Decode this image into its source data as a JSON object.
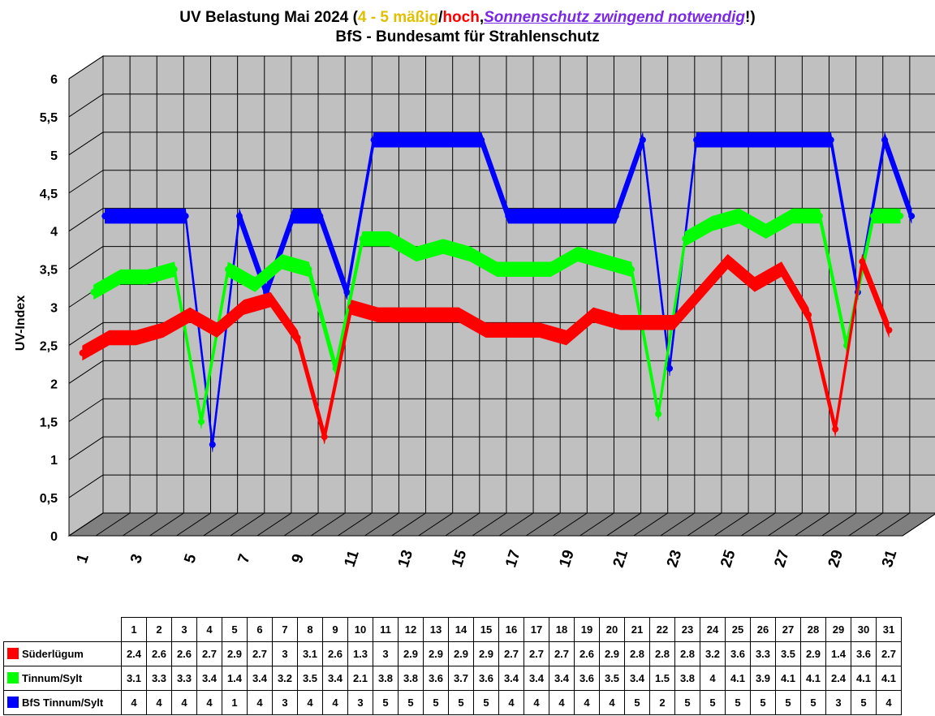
{
  "title": {
    "line1_a": "UV Belastung Mai 2024 (",
    "line1_b": "4 - 5 mäßig",
    "line1_c": "/",
    "line1_d": "hoch",
    "line1_e": ",",
    "line1_f": "Sonnenschutz zwingend notwendig",
    "line1_g": "!)",
    "line2": "BfS - Bundesamt für Strahlenschutz"
  },
  "colors": {
    "title_yellow": "#e0c000",
    "title_red": "#ff0000",
    "title_purple": "#7a28e6",
    "series1": "#ff0000",
    "series2": "#00ff00",
    "series3": "#0000ff",
    "wall": "#c0c0c0",
    "floor": "#808080"
  },
  "chart_data": {
    "type": "line",
    "ylabel": "UV-Index",
    "ylim": [
      0,
      6
    ],
    "yticks": [
      "0",
      "0,5",
      "1",
      "1,5",
      "2",
      "2,5",
      "3",
      "3,5",
      "4",
      "4,5",
      "5",
      "5,5",
      "6"
    ],
    "xtick_labels": [
      "1",
      "3",
      "5",
      "7",
      "9",
      "11",
      "13",
      "15",
      "17",
      "19",
      "21",
      "23",
      "25",
      "27",
      "29",
      "31"
    ],
    "categories": [
      "1",
      "2",
      "3",
      "4",
      "5",
      "6",
      "7",
      "8",
      "9",
      "10",
      "11",
      "12",
      "13",
      "14",
      "15",
      "16",
      "17",
      "18",
      "19",
      "20",
      "21",
      "22",
      "23",
      "24",
      "25",
      "26",
      "27",
      "28",
      "29",
      "30",
      "31"
    ],
    "grid": true,
    "legend": "table-below",
    "series": [
      {
        "name": "Süderlügum",
        "values": [
          "2.4",
          "2.6",
          "2.6",
          "2.7",
          "2.9",
          "2.7",
          "3",
          "3.1",
          "2.6",
          "1.3",
          "3",
          "2.9",
          "2.9",
          "2.9",
          "2.9",
          "2.7",
          "2.7",
          "2.7",
          "2.6",
          "2.9",
          "2.8",
          "2.8",
          "2.8",
          "3.2",
          "3.6",
          "3.3",
          "3.5",
          "2.9",
          "1.4",
          "3.6",
          "2.7"
        ]
      },
      {
        "name": "Tinnum/Sylt",
        "values": [
          "3.1",
          "3.3",
          "3.3",
          "3.4",
          "1.4",
          "3.4",
          "3.2",
          "3.5",
          "3.4",
          "2.1",
          "3.8",
          "3.8",
          "3.6",
          "3.7",
          "3.6",
          "3.4",
          "3.4",
          "3.4",
          "3.6",
          "3.5",
          "3.4",
          "1.5",
          "3.8",
          "4",
          "4.1",
          "3.9",
          "4.1",
          "4.1",
          "2.4",
          "4.1",
          "4.1"
        ]
      },
      {
        "name": "BfS Tinnum/Sylt",
        "values": [
          "4",
          "4",
          "4",
          "4",
          "1",
          "4",
          "3",
          "4",
          "4",
          "3",
          "5",
          "5",
          "5",
          "5",
          "5",
          "4",
          "4",
          "4",
          "4",
          "4",
          "5",
          "2",
          "5",
          "5",
          "5",
          "5",
          "5",
          "5",
          "3",
          "5",
          "4"
        ]
      }
    ]
  }
}
